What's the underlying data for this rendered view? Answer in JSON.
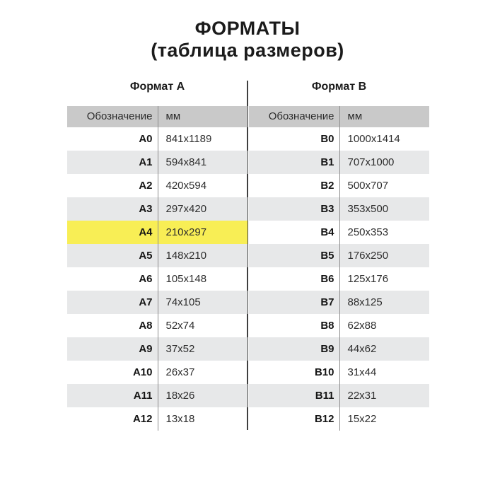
{
  "title": {
    "line1": "ФОРМАТЫ",
    "line2": "(таблица размеров)"
  },
  "colors": {
    "header_bg": "#c9c9c9",
    "alt_row_bg": "#e7e8e9",
    "highlight_bg": "#f8ee55",
    "divider_line": "#8d8d8d",
    "center_line": "#3f3f3f"
  },
  "tables": [
    {
      "name": "Формат А",
      "headers": {
        "designation": "Обозначение",
        "size": "мм"
      },
      "rows": [
        {
          "designation": "A0",
          "size": "841x1189",
          "highlight": false
        },
        {
          "designation": "A1",
          "size": "594x841",
          "highlight": false
        },
        {
          "designation": "A2",
          "size": "420x594",
          "highlight": false
        },
        {
          "designation": "A3",
          "size": "297x420",
          "highlight": false
        },
        {
          "designation": "A4",
          "size": "210x297",
          "highlight": true
        },
        {
          "designation": "A5",
          "size": "148x210",
          "highlight": false
        },
        {
          "designation": "A6",
          "size": "105x148",
          "highlight": false
        },
        {
          "designation": "A7",
          "size": "74x105",
          "highlight": false
        },
        {
          "designation": "A8",
          "size": "52x74",
          "highlight": false
        },
        {
          "designation": "A9",
          "size": "37x52",
          "highlight": false
        },
        {
          "designation": "A10",
          "size": "26x37",
          "highlight": false
        },
        {
          "designation": "A11",
          "size": "18x26",
          "highlight": false
        },
        {
          "designation": "A12",
          "size": "13x18",
          "highlight": false
        }
      ]
    },
    {
      "name": "Формат В",
      "headers": {
        "designation": "Обозначение",
        "size": "мм"
      },
      "rows": [
        {
          "designation": "B0",
          "size": "1000x1414",
          "highlight": false
        },
        {
          "designation": "B1",
          "size": "707x1000",
          "highlight": false
        },
        {
          "designation": "B2",
          "size": "500x707",
          "highlight": false
        },
        {
          "designation": "B3",
          "size": "353x500",
          "highlight": false
        },
        {
          "designation": "B4",
          "size": "250x353",
          "highlight": false
        },
        {
          "designation": "B5",
          "size": "176x250",
          "highlight": false
        },
        {
          "designation": "B6",
          "size": "125x176",
          "highlight": false
        },
        {
          "designation": "B7",
          "size": "88x125",
          "highlight": false
        },
        {
          "designation": "B8",
          "size": "62x88",
          "highlight": false
        },
        {
          "designation": "B9",
          "size": "44x62",
          "highlight": false
        },
        {
          "designation": "B10",
          "size": "31x44",
          "highlight": false
        },
        {
          "designation": "B11",
          "size": "22x31",
          "highlight": false
        },
        {
          "designation": "B12",
          "size": "15x22",
          "highlight": false
        }
      ]
    }
  ]
}
